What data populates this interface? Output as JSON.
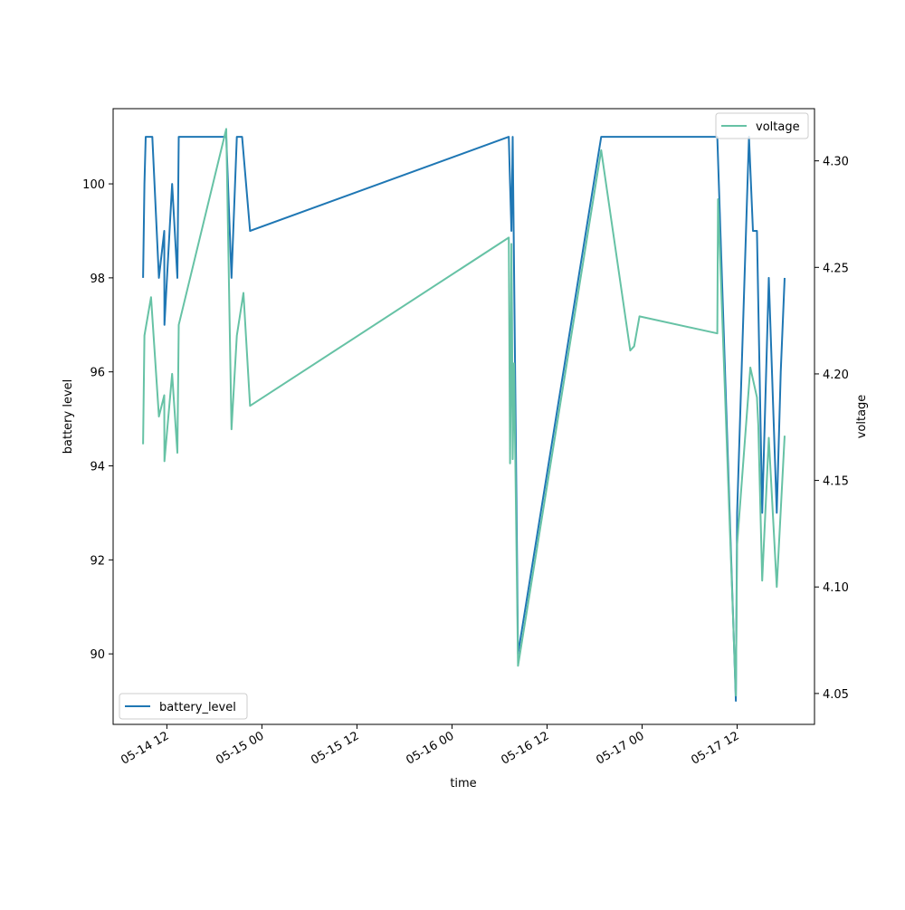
{
  "chart_data": {
    "type": "line",
    "title": "",
    "xlabel": "time",
    "ylabel_left": "battery level",
    "ylabel_right": "voltage",
    "xlim": [
      "2022-05-14 05:13",
      "2022-05-17 21:46"
    ],
    "ylim_left": [
      88.5,
      101.6
    ],
    "ylim_right": [
      4.0355,
      4.3245
    ],
    "x_tick_labels": [
      "05-14 12",
      "05-15 00",
      "05-15 12",
      "05-16 00",
      "05-16 12",
      "05-17 00",
      "05-17 12"
    ],
    "x_tick_values": [
      "2022-05-14 12:00",
      "2022-05-15 00:00",
      "2022-05-15 12:00",
      "2022-05-16 00:00",
      "2022-05-16 12:00",
      "2022-05-17 00:00",
      "2022-05-17 12:00"
    ],
    "y_left_ticks": [
      "90",
      "92",
      "94",
      "96",
      "98",
      "100"
    ],
    "y_right_ticks": [
      "4.05",
      "4.10",
      "4.15",
      "4.20",
      "4.25",
      "4.30"
    ],
    "colors": {
      "battery_level": "#1f77b4",
      "voltage": "#66c2a5"
    },
    "grid": false,
    "series": [
      {
        "name": "battery_level",
        "axis": "left",
        "legend_position": "lower-left",
        "points": [
          [
            "2022-05-14 09:00",
            98
          ],
          [
            "2022-05-14 09:10",
            100
          ],
          [
            "2022-05-14 09:20",
            101
          ],
          [
            "2022-05-14 10:10",
            101
          ],
          [
            "2022-05-14 11:00",
            98
          ],
          [
            "2022-05-14 11:40",
            99
          ],
          [
            "2022-05-14 11:42",
            97
          ],
          [
            "2022-05-14 12:40",
            100
          ],
          [
            "2022-05-14 13:20",
            98
          ],
          [
            "2022-05-14 13:30",
            101
          ],
          [
            "2022-05-14 19:30",
            101
          ],
          [
            "2022-05-14 20:10",
            98
          ],
          [
            "2022-05-14 20:50",
            101
          ],
          [
            "2022-05-14 21:30",
            101
          ],
          [
            "2022-05-14 22:30",
            99
          ],
          [
            "2022-05-16 07:10",
            101
          ],
          [
            "2022-05-16 07:20",
            100
          ],
          [
            "2022-05-16 07:30",
            99
          ],
          [
            "2022-05-16 07:40",
            101
          ],
          [
            "2022-05-16 08:20",
            90
          ],
          [
            "2022-05-16 18:50",
            101
          ],
          [
            "2022-05-17 09:30",
            101
          ],
          [
            "2022-05-17 11:50",
            89
          ],
          [
            "2022-05-17 12:00",
            93
          ],
          [
            "2022-05-17 13:30",
            101
          ],
          [
            "2022-05-17 14:00",
            99
          ],
          [
            "2022-05-17 14:30",
            99
          ],
          [
            "2022-05-17 15:10",
            93
          ],
          [
            "2022-05-17 16:00",
            98
          ],
          [
            "2022-05-17 17:00",
            93
          ],
          [
            "2022-05-17 17:30",
            96
          ],
          [
            "2022-05-17 18:00",
            98
          ]
        ]
      },
      {
        "name": "voltage",
        "axis": "right",
        "legend_position": "upper-right",
        "points": [
          [
            "2022-05-14 09:00",
            4.167
          ],
          [
            "2022-05-14 09:10",
            4.218
          ],
          [
            "2022-05-14 10:00",
            4.236
          ],
          [
            "2022-05-14 11:00",
            4.18
          ],
          [
            "2022-05-14 11:40",
            4.19
          ],
          [
            "2022-05-14 11:42",
            4.159
          ],
          [
            "2022-05-14 12:40",
            4.2
          ],
          [
            "2022-05-14 13:20",
            4.163
          ],
          [
            "2022-05-14 13:30",
            4.223
          ],
          [
            "2022-05-14 19:30",
            4.315
          ],
          [
            "2022-05-14 20:10",
            4.174
          ],
          [
            "2022-05-14 20:50",
            4.218
          ],
          [
            "2022-05-14 21:40",
            4.238
          ],
          [
            "2022-05-14 22:30",
            4.185
          ],
          [
            "2022-05-16 07:10",
            4.264
          ],
          [
            "2022-05-16 07:20",
            4.158
          ],
          [
            "2022-05-16 07:25",
            4.193
          ],
          [
            "2022-05-16 07:30",
            4.261
          ],
          [
            "2022-05-16 07:35",
            4.225
          ],
          [
            "2022-05-16 07:40",
            4.16
          ],
          [
            "2022-05-16 07:50",
            4.205
          ],
          [
            "2022-05-16 08:20",
            4.063
          ],
          [
            "2022-05-16 18:50",
            4.305
          ],
          [
            "2022-05-16 22:30",
            4.211
          ],
          [
            "2022-05-16 23:00",
            4.213
          ],
          [
            "2022-05-16 23:40",
            4.227
          ],
          [
            "2022-05-17 09:30",
            4.219
          ],
          [
            "2022-05-17 09:35",
            4.282
          ],
          [
            "2022-05-17 11:50",
            4.049
          ],
          [
            "2022-05-17 12:00",
            4.12
          ],
          [
            "2022-05-17 13:40",
            4.203
          ],
          [
            "2022-05-17 14:30",
            4.189
          ],
          [
            "2022-05-17 14:40",
            4.176
          ],
          [
            "2022-05-17 15:10",
            4.103
          ],
          [
            "2022-05-17 16:00",
            4.17
          ],
          [
            "2022-05-17 17:00",
            4.1
          ],
          [
            "2022-05-17 18:00",
            4.171
          ]
        ]
      }
    ]
  }
}
